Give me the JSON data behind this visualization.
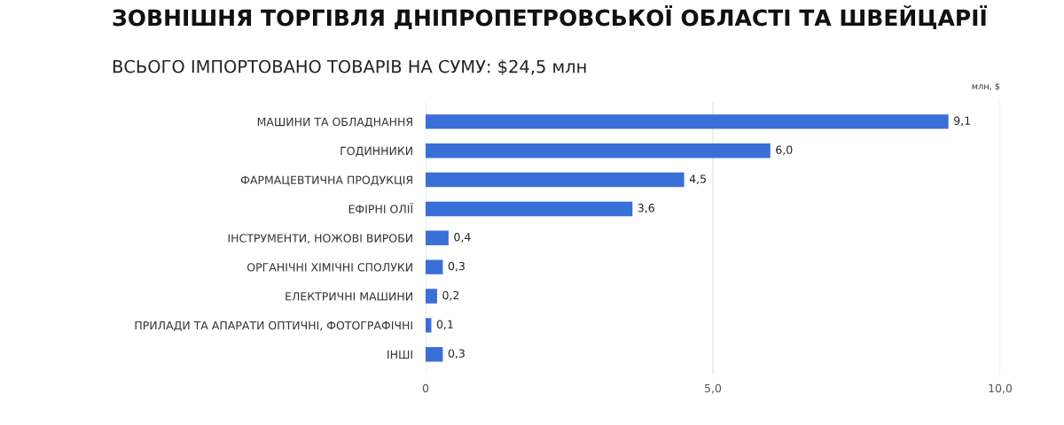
{
  "chart_data": {
    "type": "bar",
    "orientation": "horizontal",
    "title": "ЗОВНІШНЯ ТОРГІВЛЯ ДНІПРОПЕТРОВСЬКОЇ ОБЛАСТІ ТА ШВЕЙЦАРІЇ",
    "subtitle": "ВСЬОГО ІМПОРТОВАНО ТОВАРІВ НА СУМУ: $24,5 млн",
    "xlabel": "млн, $",
    "categories": [
      "МАШИНИ ТА ОБЛАДНАННЯ",
      "ГОДИННИКИ",
      "ФАРМАЦЕВТИЧНА ПРОДУКЦІЯ",
      "ЕФІРНІ ОЛІЇ",
      "ІНСТРУМЕНТИ, НОЖОВІ ВИРОБИ",
      "ОРГАНІЧНІ ХІМІЧНІ СПОЛУКИ",
      "ЕЛЕКТРИЧНІ МАШИНИ",
      "ПРИЛАДИ ТА АПАРАТИ ОПТИЧНІ, ФОТОГРАФІЧНІ",
      "ІНШІ"
    ],
    "values": [
      9.1,
      6.0,
      4.5,
      3.6,
      0.4,
      0.3,
      0.2,
      0.1,
      0.3
    ],
    "value_labels": [
      "9,1",
      "6,0",
      "4,5",
      "3,6",
      "0,4",
      "0,3",
      "0,2",
      "0,1",
      "0,3"
    ],
    "color": "#3a6fd8",
    "xlim": [
      0,
      10
    ],
    "xticks": [
      0,
      {
        "value": 5,
        "label": "5,0"
      },
      {
        "value": 10,
        "label": "10,0"
      }
    ],
    "grid": "x"
  }
}
